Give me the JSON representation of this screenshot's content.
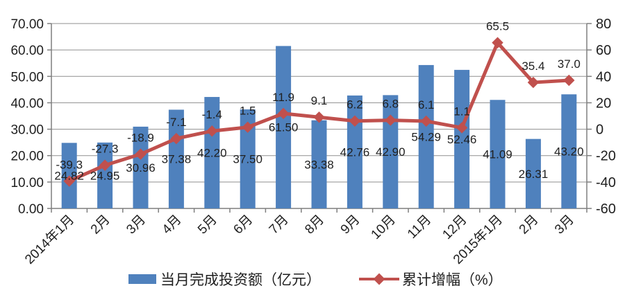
{
  "colors": {
    "bar": "#4f81bd",
    "line": "#c0504d",
    "grid": "#8f8f8f",
    "axis": "#7f7f7f",
    "text": "#1f1f1f",
    "background": "#ffffff"
  },
  "legend": {
    "bar_label": "当月完成投资额（亿元）",
    "line_label": "累计增幅（%）"
  },
  "chart_data": {
    "type": "combo",
    "grid": true,
    "legend_position": "bottom",
    "categories": [
      "2014年1月",
      "2月",
      "3月",
      "4月",
      "5月",
      "6月",
      "7月",
      "8月",
      "9月",
      "10月",
      "11月",
      "12月",
      "2015年1月",
      "2月",
      "3月"
    ],
    "series": [
      {
        "name": "当月完成投资额（亿元）",
        "type": "bar",
        "axis": "left",
        "color": "#4f81bd",
        "values": [
          24.82,
          24.95,
          30.96,
          37.38,
          42.2,
          37.5,
          61.5,
          33.38,
          42.76,
          42.9,
          54.29,
          52.46,
          41.09,
          26.31,
          43.2
        ],
        "labels": [
          "24.82",
          "24.95",
          "30.96",
          "37.38",
          "42.20",
          "37.50",
          "61.50",
          "33.38",
          "42.76",
          "42.90",
          "54.29",
          "52.46",
          "41.09",
          "26.31",
          "43.20"
        ]
      },
      {
        "name": "累计增幅（%）",
        "type": "line",
        "axis": "right",
        "color": "#c0504d",
        "values": [
          -39.3,
          -27.3,
          -18.9,
          -7.1,
          -1.4,
          1.5,
          11.9,
          9.1,
          6.2,
          6.8,
          6.1,
          1.1,
          65.5,
          35.4,
          37.0
        ],
        "labels": [
          "-39.3",
          "-27.3",
          "-18.9",
          "-7.1",
          "-1.4",
          "1.5",
          "11.9",
          "9.1",
          "6.2",
          "6.8",
          "6.1",
          "1.1",
          "65.5",
          "35.4",
          "37.0"
        ]
      }
    ],
    "left_axis": {
      "min": 0,
      "max": 70,
      "step": 10,
      "ticks": [
        "70.00",
        "60.00",
        "50.00",
        "40.00",
        "30.00",
        "20.00",
        "10.00",
        "0.00"
      ]
    },
    "right_axis": {
      "min": -60,
      "max": 80,
      "step": 20,
      "ticks": [
        "80",
        "60",
        "40",
        "20",
        "0",
        "-20",
        "-40",
        "-60"
      ]
    }
  }
}
